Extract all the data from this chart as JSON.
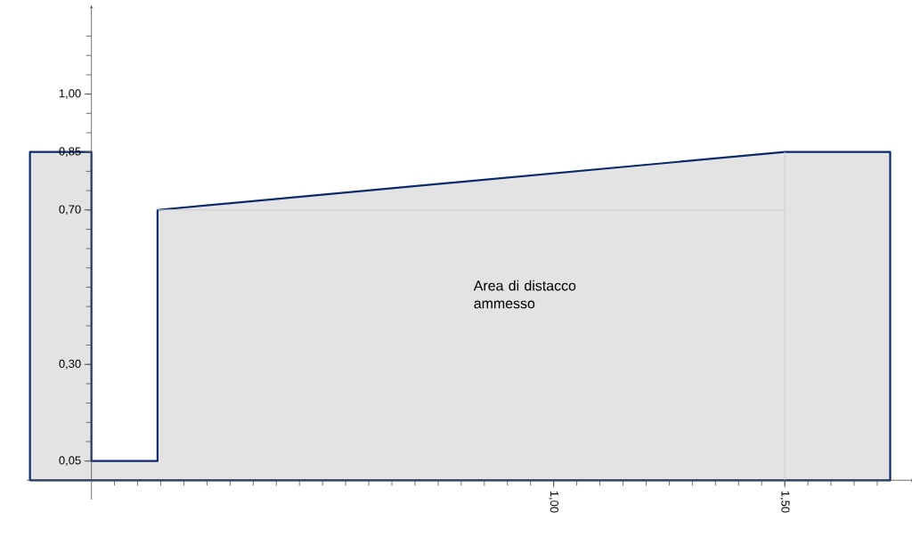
{
  "chart_data": {
    "type": "area",
    "x": [
      -0.133,
      0,
      0,
      0.143,
      0.143,
      1.5,
      1.728
    ],
    "series": [
      {
        "color": "#0b2a6b",
        "values": [
          0.85,
          0.85,
          0.05,
          0.05,
          0.7,
          0.85,
          0.85
        ]
      }
    ],
    "xlim": [
      -0.14,
      1.78
    ],
    "ylim": [
      -0.05,
      1.23
    ],
    "xticks": [
      {
        "value": 1.0,
        "label": "1,00"
      },
      {
        "value": 1.5,
        "label": "1,50"
      }
    ],
    "yticks": [
      {
        "value": 0.05,
        "label": "0,05"
      },
      {
        "value": 0.3,
        "label": "0,30"
      },
      {
        "value": 0.7,
        "label": "0,70"
      },
      {
        "value": 0.85,
        "label": "0,85"
      },
      {
        "value": 1.0,
        "label": "1,00"
      }
    ],
    "ref_lines": [
      {
        "axis": "y",
        "value": 0.7,
        "color": "#cccccc"
      },
      {
        "axis": "x",
        "value": 1.5,
        "color": "#cccccc"
      }
    ],
    "annotations": [
      "Area di distacco ammesso"
    ],
    "grid": false
  }
}
